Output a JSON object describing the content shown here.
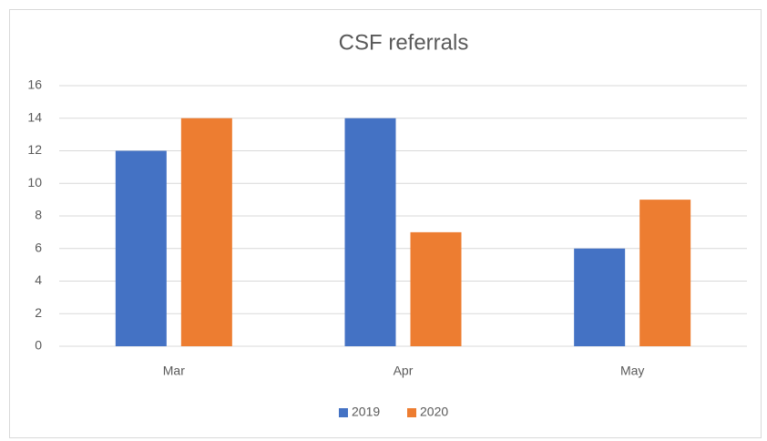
{
  "chart_data": {
    "type": "bar",
    "title": "CSF referrals",
    "categories": [
      "Mar",
      "Apr",
      "May"
    ],
    "series": [
      {
        "name": "2019",
        "color": "#4472c4",
        "values": [
          12,
          14,
          6
        ]
      },
      {
        "name": "2020",
        "color": "#ed7d31",
        "values": [
          14,
          7,
          9
        ]
      }
    ],
    "ylim": [
      0,
      16
    ],
    "yticks": [
      0,
      2,
      4,
      6,
      8,
      10,
      12,
      14,
      16
    ],
    "grid": true,
    "legend": "bottom"
  }
}
